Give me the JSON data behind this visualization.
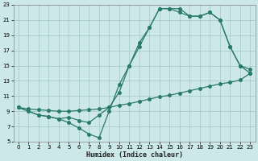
{
  "xlabel": "Humidex (Indice chaleur)",
  "bg_color": "#cce8e8",
  "grid_color": "#aacccc",
  "line_color": "#2a7a6a",
  "xlim": [
    -0.5,
    23.5
  ],
  "ylim": [
    5,
    23
  ],
  "xticks": [
    0,
    1,
    2,
    3,
    4,
    5,
    6,
    7,
    8,
    9,
    10,
    11,
    12,
    13,
    14,
    15,
    16,
    17,
    18,
    19,
    20,
    21,
    22,
    23
  ],
  "yticks": [
    5,
    7,
    9,
    11,
    13,
    15,
    17,
    19,
    21,
    23
  ],
  "line_straight_x": [
    0,
    1,
    2,
    3,
    4,
    5,
    6,
    7,
    8,
    9,
    10,
    11,
    12,
    13,
    14,
    15,
    16,
    17,
    18,
    19,
    20,
    21,
    22,
    23
  ],
  "line_straight_y": [
    9.5,
    9.3,
    9.2,
    9.1,
    9.0,
    9.0,
    9.1,
    9.2,
    9.3,
    9.5,
    9.8,
    10.0,
    10.3,
    10.6,
    10.9,
    11.1,
    11.4,
    11.7,
    12.0,
    12.3,
    12.6,
    12.8,
    13.1,
    14.0
  ],
  "line_wavy_x": [
    0,
    1,
    2,
    3,
    4,
    5,
    6,
    7,
    8,
    9,
    10,
    11,
    12,
    13,
    14,
    15,
    16,
    17,
    18,
    19,
    20,
    21,
    22,
    23
  ],
  "line_wavy_y": [
    9.5,
    9.0,
    8.5,
    8.3,
    8.0,
    7.5,
    6.8,
    6.0,
    5.5,
    9.0,
    12.5,
    15.0,
    17.5,
    20.0,
    22.5,
    22.5,
    22.5,
    21.5,
    21.5,
    22.0,
    21.0,
    17.5,
    15.0,
    14.0
  ],
  "line_middle_x": [
    0,
    2,
    3,
    4,
    5,
    6,
    7,
    8,
    9,
    10,
    11,
    12,
    13,
    14,
    15,
    16,
    17,
    18,
    19,
    20,
    21,
    22,
    23
  ],
  "line_middle_y": [
    9.5,
    8.5,
    8.3,
    8.0,
    8.2,
    7.8,
    7.5,
    8.5,
    9.5,
    11.5,
    15.0,
    18.0,
    20.0,
    22.5,
    22.5,
    22.0,
    21.5,
    21.5,
    22.0,
    21.0,
    17.5,
    15.0,
    14.5
  ],
  "marker_size": 2.5,
  "linewidth": 0.9
}
